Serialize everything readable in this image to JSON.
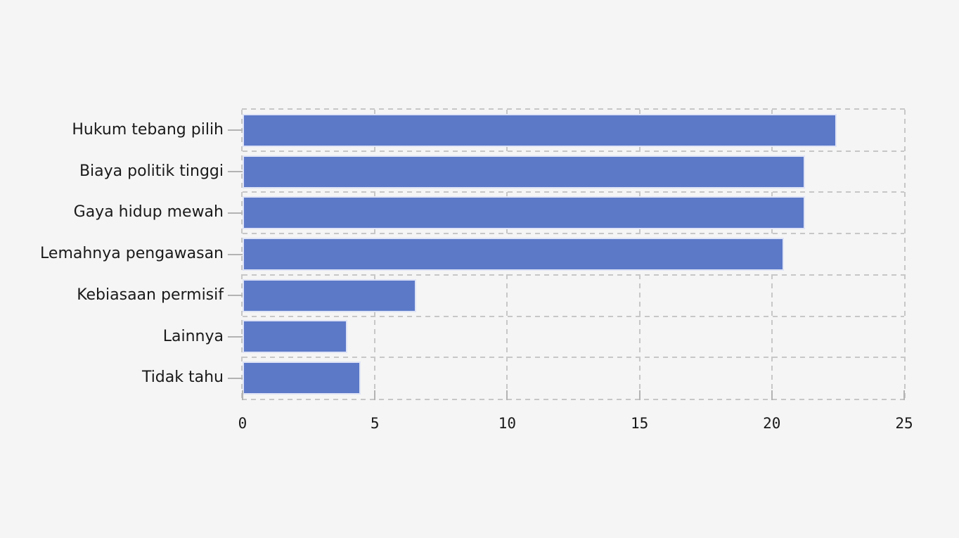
{
  "chart_data": {
    "type": "bar",
    "orientation": "horizontal",
    "title": "",
    "xlabel": "",
    "ylabel": "",
    "categories": [
      "Hukum tebang pilih",
      "Biaya politik tinggi",
      "Gaya hidup mewah",
      "Lemahnya pengawasan",
      "Kebiasaan permisif",
      "Lainnya",
      "Tidak tahu"
    ],
    "values": [
      22.4,
      21.2,
      21.2,
      20.4,
      6.5,
      3.9,
      4.4
    ],
    "xlim": [
      0,
      25
    ],
    "xticks": [
      0,
      5,
      10,
      15,
      20,
      25
    ],
    "grid": true,
    "legend": null,
    "colors": {
      "background": "#f5f5f5",
      "bar_fill": "#5c79c8",
      "bar_border": "#dfe4f6",
      "grid_line": "#c7c7c7",
      "tick_mark": "#b3b3b3",
      "text": "#1a1a1a"
    }
  }
}
